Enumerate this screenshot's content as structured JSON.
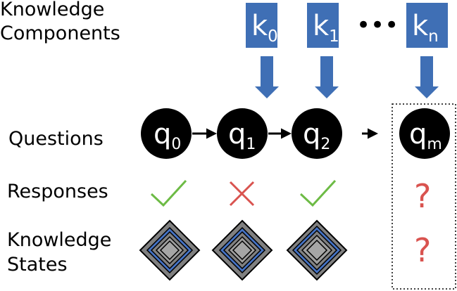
{
  "labels": {
    "knowledge_components_line1": "Knowledge",
    "knowledge_components_line2": "Components",
    "questions": "Questions",
    "responses": "Responses",
    "knowledge_states_line1": "Knowledge",
    "knowledge_states_line2": "States"
  },
  "knowledge_components": [
    {
      "base": "k",
      "sub": "0"
    },
    {
      "base": "k",
      "sub": "1"
    },
    {
      "base": "k",
      "sub": "n"
    }
  ],
  "ellipsis": "•••",
  "questions": [
    {
      "base": "q",
      "sub": "0"
    },
    {
      "base": "q",
      "sub": "1"
    },
    {
      "base": "q",
      "sub": "2"
    },
    {
      "base": "q",
      "sub": "m"
    }
  ],
  "responses": [
    "correct",
    "incorrect",
    "correct"
  ],
  "unknown_response": "?",
  "unknown_state": "?",
  "colors": {
    "kc_box": "#3f6fb5",
    "question_circle": "#000000",
    "correct": "#6dbb45",
    "incorrect": "#d9534f",
    "unknown": "#d9534f",
    "state_outer": "#7f7f7f",
    "state_inner": "#4472c4"
  },
  "icons": {
    "correct": "check-icon",
    "incorrect": "cross-icon",
    "arrow": "arrow-right-icon"
  }
}
